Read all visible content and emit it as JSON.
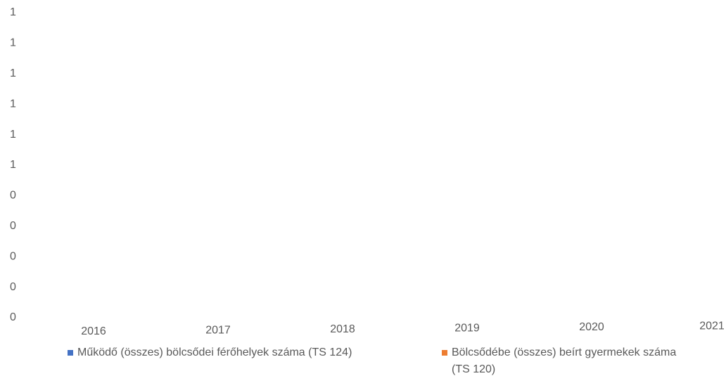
{
  "chart_data": {
    "type": "bar",
    "categories": [
      "2016",
      "2017",
      "2018",
      "2019",
      "2020",
      "2021"
    ],
    "series": [
      {
        "name": "Működő (összes) bölcsődei férőhelyek száma (TS 124)",
        "color": "#4472c4",
        "values": [
          null,
          null,
          null,
          null,
          null,
          null
        ]
      },
      {
        "name": "Bölcsődébe (összes) beírt gyermekek száma (TS 120)",
        "color": "#ed7d31",
        "values": [
          null,
          null,
          null,
          null,
          null,
          null
        ]
      }
    ],
    "ylim": [
      0,
      1
    ],
    "yticks": [
      0,
      {
        "value": 0.1,
        "label": "0"
      },
      {
        "value": 0.2,
        "label": "0"
      },
      {
        "value": 0.3,
        "label": "0"
      },
      {
        "value": 0.4,
        "label": "0"
      },
      {
        "value": 0.5,
        "label": "1"
      },
      {
        "value": 0.6,
        "label": "1"
      },
      {
        "value": 0.7,
        "label": "1"
      },
      {
        "value": 0.8,
        "label": "1"
      },
      {
        "value": 0.9,
        "label": "1"
      },
      1
    ],
    "grid": false,
    "legend": "bottom"
  }
}
